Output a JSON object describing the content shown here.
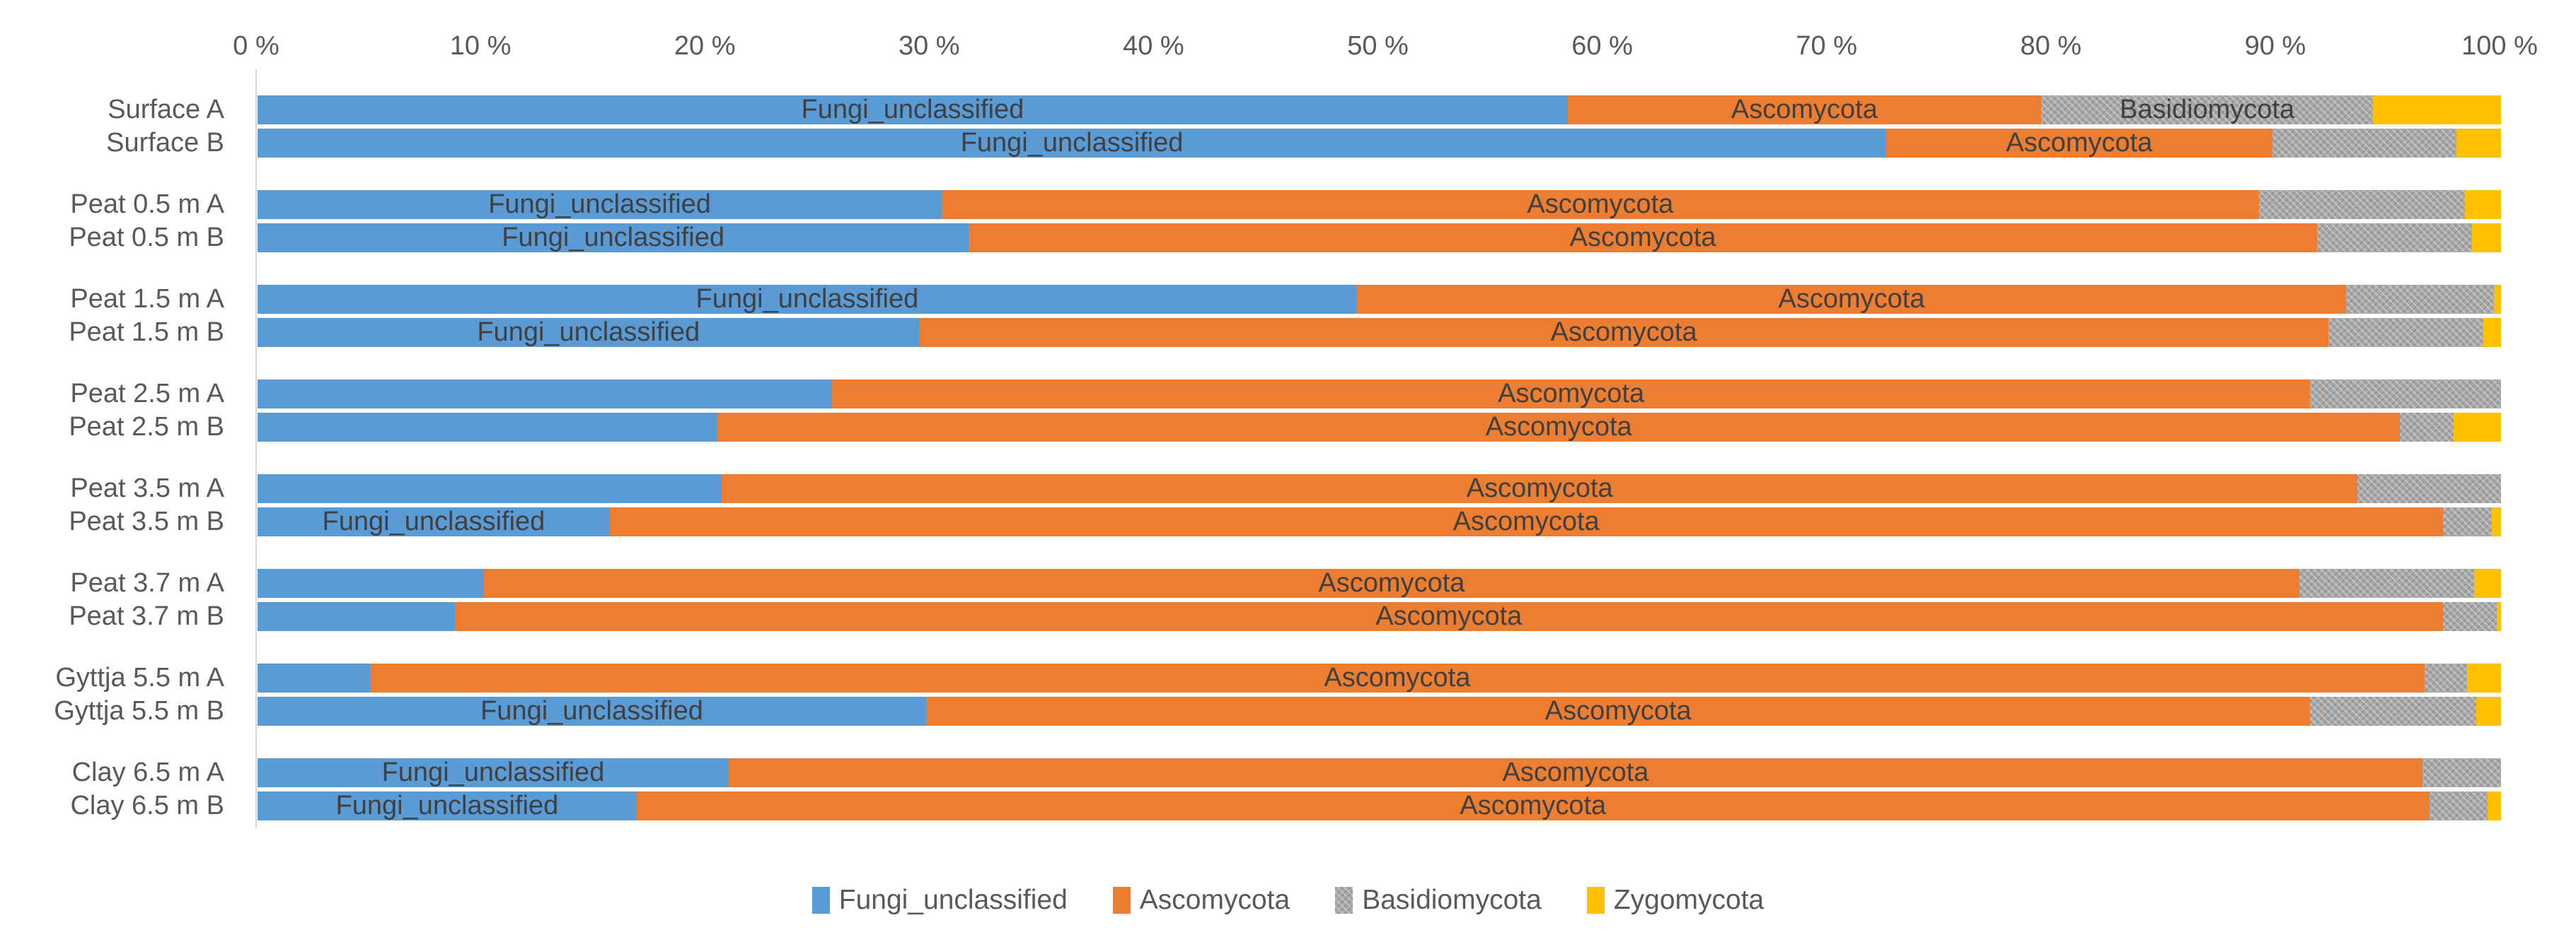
{
  "chart_data": {
    "type": "bar",
    "orientation": "horizontal-stacked",
    "title": "",
    "xlabel": "",
    "ylabel": "",
    "x_axis": {
      "min": 0,
      "max": 100,
      "unit": "percent",
      "ticks": [
        "0 %",
        "10 %",
        "20 %",
        "30 %",
        "40 %",
        "50 %",
        "60 %",
        "70 %",
        "80 %",
        "90 %",
        "100 %"
      ]
    },
    "grid": "left-axis-line-only",
    "legend_position": "bottom-center",
    "series_names": [
      "Fungi_unclassified",
      "Ascomycota",
      "Basidiomycota",
      "Zygomycota"
    ],
    "colors": {
      "Fungi_unclassified": "#5B9BD5",
      "Ascomycota": "#ED7D31",
      "Basidiomycota": "#A5A5A5",
      "Zygomycota": "#FFC000",
      "axis_text": "#595959",
      "bar_label_text": "#404040",
      "axis_line": "#D9D9D9"
    },
    "basidiomycota_fill_pattern": "dotted-texture",
    "rows": [
      {
        "label": "Surface A",
        "group": 0,
        "values": [
          58.4,
          21.1,
          14.8,
          5.7
        ],
        "segment_labels": [
          "Fungi_unclassified",
          "Ascomycota",
          "Basidiomycota",
          ""
        ]
      },
      {
        "label": "Surface B",
        "group": 0,
        "values": [
          72.6,
          17.2,
          8.2,
          2.0
        ],
        "segment_labels": [
          "Fungi_unclassified",
          "Ascomycota",
          "",
          ""
        ]
      },
      {
        "label": "Peat 0.5 m A",
        "group": 1,
        "values": [
          30.5,
          58.7,
          9.2,
          1.6
        ],
        "segment_labels": [
          "Fungi_unclassified",
          "Ascomycota",
          "",
          ""
        ]
      },
      {
        "label": "Peat 0.5 m B",
        "group": 1,
        "values": [
          31.7,
          60.1,
          6.9,
          1.3
        ],
        "segment_labels": [
          "Fungi_unclassified",
          "Ascomycota",
          "",
          ""
        ]
      },
      {
        "label": "Peat 1.5 m A",
        "group": 2,
        "values": [
          49.0,
          44.1,
          6.6,
          0.3
        ],
        "segment_labels": [
          "Fungi_unclassified",
          "Ascomycota",
          "",
          ""
        ]
      },
      {
        "label": "Peat 1.5 m B",
        "group": 2,
        "values": [
          29.5,
          62.8,
          6.9,
          0.8
        ],
        "segment_labels": [
          "Fungi_unclassified",
          "Ascomycota",
          "",
          ""
        ]
      },
      {
        "label": "Peat 2.5 m A",
        "group": 3,
        "values": [
          25.6,
          65.9,
          8.5,
          0.0
        ],
        "segment_labels": [
          "",
          "Ascomycota",
          "",
          ""
        ]
      },
      {
        "label": "Peat 2.5 m B",
        "group": 3,
        "values": [
          20.5,
          75.0,
          2.4,
          2.1
        ],
        "segment_labels": [
          "",
          "Ascomycota",
          "",
          ""
        ]
      },
      {
        "label": "Peat 3.5 m A",
        "group": 4,
        "values": [
          20.7,
          72.9,
          6.4,
          0.0
        ],
        "segment_labels": [
          "",
          "Ascomycota",
          "",
          ""
        ]
      },
      {
        "label": "Peat 3.5 m B",
        "group": 4,
        "values": [
          15.7,
          81.7,
          2.2,
          0.4
        ],
        "segment_labels": [
          "Fungi_unclassified",
          "Ascomycota",
          "",
          ""
        ]
      },
      {
        "label": "Peat 3.7 m A",
        "group": 5,
        "values": [
          10.1,
          80.9,
          7.8,
          1.2
        ],
        "segment_labels": [
          "",
          "Ascomycota",
          "",
          ""
        ]
      },
      {
        "label": "Peat 3.7 m B",
        "group": 5,
        "values": [
          8.8,
          88.6,
          2.4,
          0.2
        ],
        "segment_labels": [
          "",
          "Ascomycota",
          "",
          ""
        ]
      },
      {
        "label": "Gyttja 5.5 m A",
        "group": 6,
        "values": [
          5.0,
          91.6,
          1.9,
          1.5
        ],
        "segment_labels": [
          "",
          "Ascomycota",
          "",
          ""
        ]
      },
      {
        "label": "Gyttja 5.5 m B",
        "group": 6,
        "values": [
          29.8,
          61.7,
          7.4,
          1.1
        ],
        "segment_labels": [
          "Fungi_unclassified",
          "Ascomycota",
          "",
          ""
        ]
      },
      {
        "label": "Clay 6.5 m A",
        "group": 7,
        "values": [
          21.0,
          75.5,
          3.5,
          0.0
        ],
        "segment_labels": [
          "Fungi_unclassified",
          "Ascomycota",
          "",
          ""
        ]
      },
      {
        "label": "Clay 6.5 m B",
        "group": 7,
        "values": [
          16.9,
          79.9,
          2.6,
          0.6
        ],
        "segment_labels": [
          "Fungi_unclassified",
          "Ascomycota",
          "",
          ""
        ]
      }
    ],
    "legend": [
      "Fungi_unclassified",
      "Ascomycota",
      "Basidiomycota",
      "Zygomycota"
    ]
  }
}
